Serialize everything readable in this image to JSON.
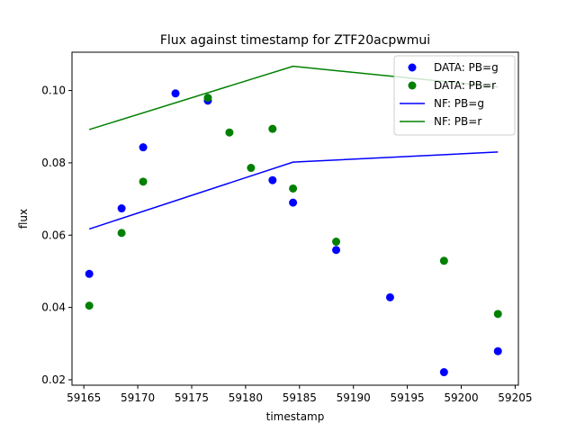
{
  "chart_data": {
    "type": "scatter",
    "title": "Flux against timestamp for ZTF20acpwmui",
    "xlabel": "timestamp",
    "ylabel": "flux",
    "xlim": [
      59163.9,
      59205.3
    ],
    "ylim": [
      0.0185,
      0.1106
    ],
    "x_ticks": [
      59165,
      59170,
      59175,
      59180,
      59185,
      59190,
      59195,
      59200,
      59205
    ],
    "y_ticks": [
      0.02,
      0.04,
      0.06,
      0.08,
      0.1
    ],
    "y_tick_labels": [
      "0.02",
      "0.04",
      "0.06",
      "0.08",
      "0.10"
    ],
    "grid": false,
    "legend_placement": "top-right",
    "series": [
      {
        "name": "DATA: PB=g",
        "kind": "points",
        "color": "#0000ff",
        "points": [
          [
            59165.5,
            0.0493
          ],
          [
            59168.5,
            0.0674
          ],
          [
            59170.5,
            0.0843
          ],
          [
            59173.5,
            0.0992
          ],
          [
            59176.5,
            0.0972
          ],
          [
            59182.5,
            0.0752
          ],
          [
            59184.4,
            0.069
          ],
          [
            59188.4,
            0.0559
          ],
          [
            59193.4,
            0.0428
          ],
          [
            59198.4,
            0.0221
          ],
          [
            59203.4,
            0.0279
          ]
        ]
      },
      {
        "name": "DATA: PB=r",
        "kind": "points",
        "color": "#008000",
        "points": [
          [
            59165.5,
            0.0405
          ],
          [
            59168.5,
            0.0606
          ],
          [
            59170.5,
            0.0748
          ],
          [
            59176.5,
            0.098
          ],
          [
            59178.5,
            0.0884
          ],
          [
            59180.5,
            0.0786
          ],
          [
            59182.5,
            0.0894
          ],
          [
            59184.4,
            0.0729
          ],
          [
            59188.4,
            0.0582
          ],
          [
            59198.4,
            0.0529
          ],
          [
            59203.4,
            0.0382
          ]
        ]
      },
      {
        "name": "NF: PB=g",
        "kind": "line",
        "color": "#0000ff",
        "points": [
          [
            59165.5,
            0.0617
          ],
          [
            59184.4,
            0.0802
          ],
          [
            59203.4,
            0.083
          ]
        ]
      },
      {
        "name": "NF: PB=r",
        "kind": "line",
        "color": "#008000",
        "points": [
          [
            59165.5,
            0.0892
          ],
          [
            59184.4,
            0.1067
          ],
          [
            59203.4,
            0.101
          ]
        ]
      }
    ]
  }
}
